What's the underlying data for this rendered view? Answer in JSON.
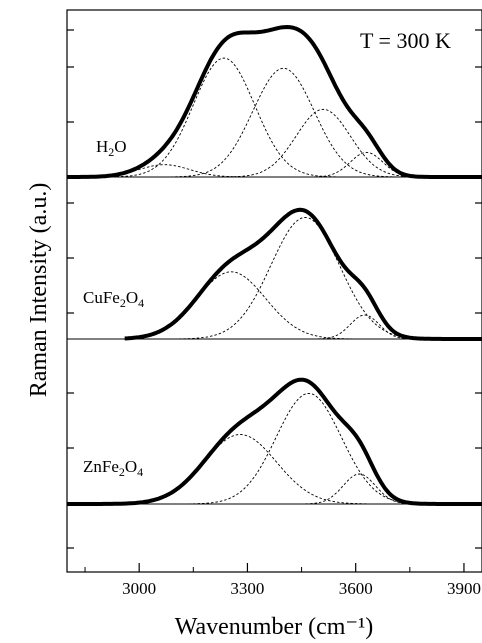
{
  "chart_data": {
    "type": "line",
    "title": "",
    "annotation": "T = 300 K",
    "xlabel": "Wavenumber (cm⁻¹)",
    "ylabel": "Raman Intensity (a.u.)",
    "xlim": [
      2800,
      3950
    ],
    "x_ticks": [
      3000,
      3300,
      3600,
      3900
    ],
    "x_tick_labels": [
      "3000",
      "3300",
      "3600",
      "3900"
    ],
    "ylim": [
      0,
      1
    ],
    "y_tick_labels_shown": false,
    "grid": false,
    "legend": "none",
    "line_color": "#000000",
    "panels": [
      {
        "label_base": "H",
        "label_sub": "2",
        "label_tail": "O",
        "x_range": [
          2800,
          3950
        ],
        "components": [
          {
            "center": 3070,
            "height": 0.06,
            "width": 70
          },
          {
            "center": 3235,
            "height": 0.58,
            "width": 85
          },
          {
            "center": 3400,
            "height": 0.53,
            "width": 85
          },
          {
            "center": 3510,
            "height": 0.33,
            "width": 75
          },
          {
            "center": 3630,
            "height": 0.12,
            "width": 45
          }
        ]
      },
      {
        "label_base": "CuFe",
        "label_sub": "2",
        "label_tail": "O",
        "label_sub2": "4",
        "x_range": [
          2960,
          3950
        ],
        "components": [
          {
            "center": 3255,
            "height": 0.42,
            "width": 95
          },
          {
            "center": 3460,
            "height": 0.76,
            "width": 95
          },
          {
            "center": 3625,
            "height": 0.15,
            "width": 40
          }
        ]
      },
      {
        "label_base": "ZnFe",
        "label_sub": "2",
        "label_tail": "O",
        "label_sub2": "4",
        "x_range": [
          2800,
          3950
        ],
        "components": [
          {
            "center": 3280,
            "height": 0.44,
            "width": 100
          },
          {
            "center": 3470,
            "height": 0.7,
            "width": 90
          },
          {
            "center": 3610,
            "height": 0.19,
            "width": 45
          }
        ]
      }
    ]
  }
}
